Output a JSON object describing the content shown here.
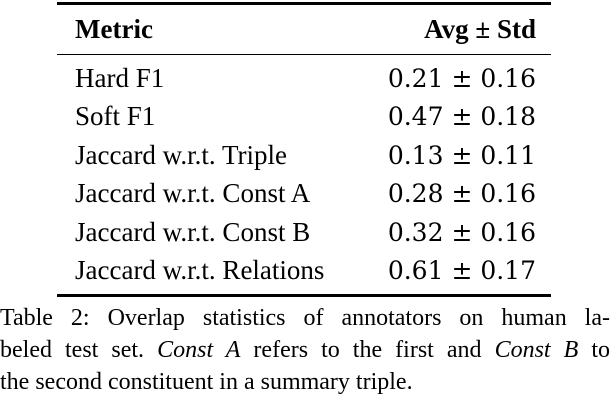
{
  "colors": {
    "background": "#ffffff",
    "text": "#000000",
    "rule": "#000000"
  },
  "table": {
    "header": {
      "metric_label": "Metric",
      "value_label": "Avg ± Std"
    },
    "rows": [
      {
        "metric": "Hard F1",
        "value": "0.21 ± 0.16"
      },
      {
        "metric": "Soft F1",
        "value": "0.47 ± 0.18"
      },
      {
        "metric": "Jaccard w.r.t. Triple",
        "value": "0.13 ± 0.11"
      },
      {
        "metric": "Jaccard w.r.t. Const A",
        "value": "0.28 ± 0.16"
      },
      {
        "metric": "Jaccard w.r.t. Const B",
        "value": "0.32 ± 0.16"
      },
      {
        "metric": "Jaccard w.r.t. Relations",
        "value": "0.61 ± 0.17"
      }
    ]
  },
  "caption": {
    "line1": "Table 2: Overlap statistics of annotators on human la-",
    "line2": {
      "t1": "beled test set. ",
      "i1": "Const A",
      "t2": " refers to the first and ",
      "i2": "Const B",
      "t3": " to"
    },
    "line3": "the second constituent in a summary triple."
  }
}
